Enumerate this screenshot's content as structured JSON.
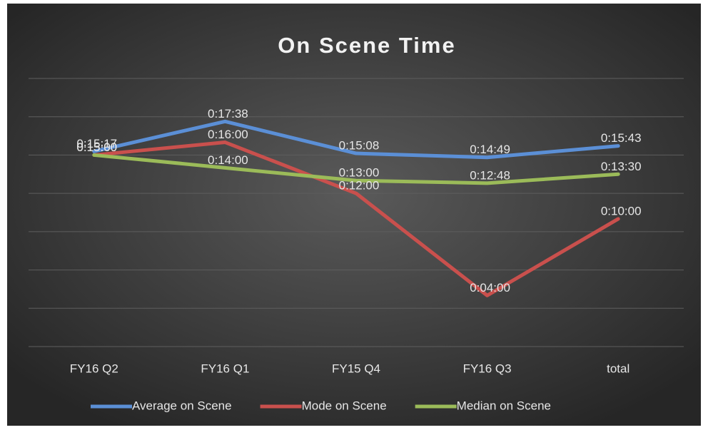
{
  "chart_data": {
    "type": "line",
    "title": "On Scene Time",
    "categories": [
      "FY16 Q2",
      "FY16 Q1",
      "FY15 Q4",
      "FY16 Q3",
      "total"
    ],
    "series": [
      {
        "name": "Average on Scene",
        "color": "#5b8fd6",
        "values": [
          917,
          1058,
          908,
          889,
          943
        ],
        "value_labels": [
          "0:15:17",
          "0:17:38",
          "0:15:08",
          "0:14:49",
          "0:15:43"
        ]
      },
      {
        "name": "Mode on Scene",
        "color": "#c9504d",
        "values": [
          900,
          960,
          720,
          240,
          600
        ],
        "value_labels": [
          "0:15:00",
          "0:16:00",
          "0:12:00",
          "0:04:00",
          "0:10:00"
        ]
      },
      {
        "name": "Median on Scene",
        "color": "#9bbb59",
        "values": [
          900,
          840,
          780,
          768,
          810
        ],
        "value_labels": [
          "0:15:00",
          "0:14:00",
          "0:13:00",
          "0:12:48",
          "0:13:30"
        ]
      }
    ],
    "ylim": [
      0,
      1260
    ],
    "yticks": [
      0,
      180,
      360,
      540,
      720,
      900,
      1080,
      1260
    ],
    "grid": true,
    "legend": "bottom"
  }
}
